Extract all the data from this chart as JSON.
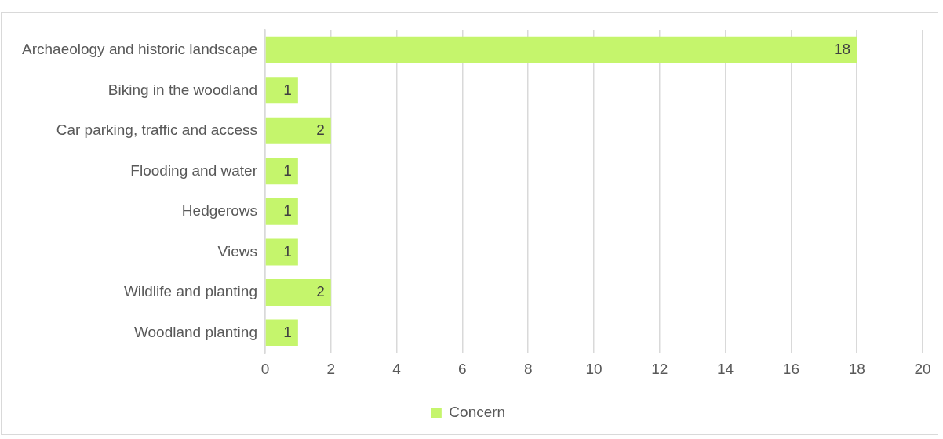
{
  "chart_data": {
    "type": "bar",
    "orientation": "horizontal",
    "categories": [
      "Archaeology and historic landscape",
      "Biking in the woodland",
      "Car parking, traffic and access",
      "Flooding and water",
      "Hedgerows",
      "Views",
      "Wildlife and planting",
      "Woodland planting"
    ],
    "series": [
      {
        "name": "Concern",
        "color": "#c5f56c",
        "values": [
          18,
          1,
          2,
          1,
          1,
          1,
          2,
          1
        ]
      }
    ],
    "xlim": [
      0,
      20
    ],
    "xticks": [
      0,
      2,
      4,
      6,
      8,
      10,
      12,
      14,
      16,
      18,
      20
    ],
    "grid": "x",
    "legend": "bottom",
    "data_labels": true
  }
}
